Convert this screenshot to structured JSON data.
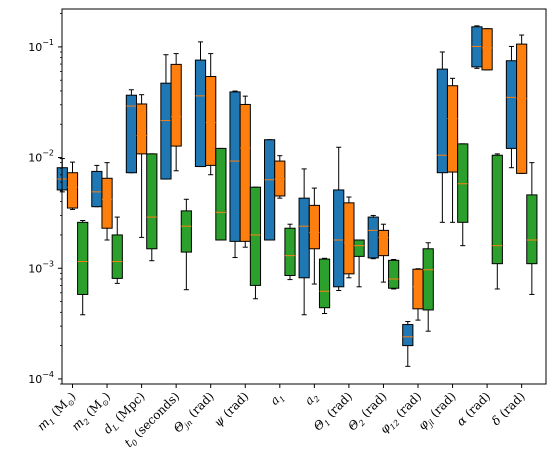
{
  "chart_data": {
    "type": "boxplot",
    "title": "",
    "xlabel": "",
    "ylabel": "",
    "yscale": "log",
    "ylim": [
      9e-05,
      0.22
    ],
    "yticks": [
      0.0001,
      0.001,
      0.01,
      0.1
    ],
    "ytick_labels": [
      {
        "base": "10",
        "exp": "−4"
      },
      {
        "base": "10",
        "exp": "−3"
      },
      {
        "base": "10",
        "exp": "−2"
      },
      {
        "base": "10",
        "exp": "−1"
      }
    ],
    "categories": [
      "m1 (M☉)",
      "m2 (M☉)",
      "dL (Mpc)",
      "t0 (seconds)",
      "Θjn (rad)",
      "ψ (rad)",
      "a1",
      "a2",
      "Θ1 (rad)",
      "Θ2 (rad)",
      "φ12 (rad)",
      "φjl (rad)",
      "α (rad)",
      "δ (rad)"
    ],
    "category_labels": [
      {
        "main": "m",
        "sub": "1",
        "rest": " (M",
        "sun": "⊙",
        "tail": ")"
      },
      {
        "main": "m",
        "sub": "2",
        "rest": " (M",
        "sun": "⊙",
        "tail": ")"
      },
      {
        "main": "d",
        "sub": "L",
        "rest": " (Mpc)"
      },
      {
        "main": "t",
        "sub": "0",
        "rest": " (seconds)"
      },
      {
        "main": "Θ",
        "sub": "jn",
        "rest": " (rad)"
      },
      {
        "main": "ψ",
        "sub": "",
        "rest": " (rad)"
      },
      {
        "main": "a",
        "sub": "1",
        "rest": ""
      },
      {
        "main": "a",
        "sub": "2",
        "rest": ""
      },
      {
        "main": "Θ",
        "sub": "1",
        "rest": " (rad)"
      },
      {
        "main": "Θ",
        "sub": "2",
        "rest": " (rad)"
      },
      {
        "main": "φ",
        "sub": "12",
        "rest": " (rad)"
      },
      {
        "main": "φ",
        "sub": "jl",
        "rest": " (rad)"
      },
      {
        "main": "α",
        "sub": "",
        "rest": " (rad)"
      },
      {
        "main": "δ",
        "sub": "",
        "rest": " (rad)"
      }
    ],
    "series": [
      {
        "color": "#1f77b4",
        "boxes": [
          {
            "wl": 0.0049,
            "q1": 0.0051,
            "med": 0.0064,
            "q3": 0.0081,
            "wh": 0.0098
          },
          {
            "wl": 0.0036,
            "q1": 0.0036,
            "med": 0.0049,
            "q3": 0.0075,
            "wh": 0.0085
          },
          {
            "wl": 0.0073,
            "q1": 0.0073,
            "med": 0.0292,
            "q3": 0.0366,
            "wh": 0.041
          },
          {
            "wl": 0.0064,
            "q1": 0.0064,
            "med": 0.0216,
            "q3": 0.047,
            "wh": 0.085
          },
          {
            "wl": 0.0083,
            "q1": 0.0083,
            "med": 0.0361,
            "q3": 0.076,
            "wh": 0.111
          },
          {
            "wl": 0.00125,
            "q1": 0.00175,
            "med": 0.0093,
            "q3": 0.0392,
            "wh": 0.0399
          },
          {
            "wl": 0.0019,
            "q1": 0.0018,
            "med": 0.0063,
            "q3": 0.0145,
            "wh": 0.0145
          },
          {
            "wl": 0.00038,
            "q1": 0.00082,
            "med": 0.0024,
            "q3": 0.0043,
            "wh": 0.0079
          },
          {
            "wl": 0.00063,
            "q1": 0.00068,
            "med": 0.0018,
            "q3": 0.0051,
            "wh": 0.0124
          },
          {
            "wl": 0.00122,
            "q1": 0.00124,
            "med": 0.0022,
            "q3": 0.0029,
            "wh": 0.003
          },
          {
            "wl": 0.00013,
            "q1": 0.0002,
            "med": 0.00024,
            "q3": 0.00031,
            "wh": 0.00033
          },
          {
            "wl": 0.0026,
            "q1": 0.0073,
            "med": 0.0105,
            "q3": 0.063,
            "wh": 0.09
          },
          {
            "wl": 0.064,
            "q1": 0.066,
            "med": 0.101,
            "q3": 0.152,
            "wh": 0.155
          },
          {
            "wl": 0.0081,
            "q1": 0.0121,
            "med": 0.035,
            "q3": 0.075,
            "wh": 0.101
          }
        ]
      },
      {
        "color": "#ff7f0e",
        "boxes": [
          {
            "wl": 0.0034,
            "q1": 0.0035,
            "med": 0.0054,
            "q3": 0.0073,
            "wh": 0.0091
          },
          {
            "wl": 0.0018,
            "q1": 0.0023,
            "med": 0.0042,
            "q3": 0.0065,
            "wh": 0.009
          },
          {
            "wl": 0.0019,
            "q1": 0.0108,
            "med": 0.0158,
            "q3": 0.0305,
            "wh": 0.037
          },
          {
            "wl": 0.0076,
            "q1": 0.0127,
            "med": 0.0234,
            "q3": 0.0695,
            "wh": 0.087
          },
          {
            "wl": 0.007,
            "q1": 0.0085,
            "med": 0.0207,
            "q3": 0.054,
            "wh": 0.087
          },
          {
            "wl": 0.00155,
            "q1": 0.00175,
            "med": 0.0122,
            "q3": 0.0302,
            "wh": 0.0359
          },
          {
            "wl": 0.0043,
            "q1": 0.0045,
            "med": 0.0064,
            "q3": 0.0093,
            "wh": 0.0104
          },
          {
            "wl": 0.00072,
            "q1": 0.0015,
            "med": 0.0021,
            "q3": 0.0037,
            "wh": 0.0053
          },
          {
            "wl": 0.00082,
            "q1": 0.00089,
            "med": 0.0017,
            "q3": 0.0039,
            "wh": 0.0044
          },
          {
            "wl": 0.00075,
            "q1": 0.0013,
            "med": 0.0019,
            "q3": 0.0022,
            "wh": 0.0025
          },
          {
            "wl": 0.00034,
            "q1": 0.00043,
            "med": 0.00068,
            "q3": 0.00098,
            "wh": 0.00099
          },
          {
            "wl": 0.0026,
            "q1": 0.0074,
            "med": 0.0225,
            "q3": 0.0446,
            "wh": 0.052
          },
          {
            "wl": 0.062,
            "q1": 0.062,
            "med": 0.098,
            "q3": 0.146,
            "wh": 0.146
          },
          {
            "wl": 0.0072,
            "q1": 0.0072,
            "med": 0.034,
            "q3": 0.106,
            "wh": 0.128
          }
        ]
      },
      {
        "color": "#2ca02c",
        "boxes": [
          {
            "wl": 0.00038,
            "q1": 0.00058,
            "med": 0.00115,
            "q3": 0.0026,
            "wh": 0.0027
          },
          {
            "wl": 0.00073,
            "q1": 0.00081,
            "med": 0.00115,
            "q3": 0.002,
            "wh": 0.0029
          },
          {
            "wl": 0.00117,
            "q1": 0.0015,
            "med": 0.0029,
            "q3": 0.0108,
            "wh": 0.0108
          },
          {
            "wl": 0.00064,
            "q1": 0.0014,
            "med": 0.0024,
            "q3": 0.0033,
            "wh": 0.0042
          },
          {
            "wl": 0.0018,
            "q1": 0.0018,
            "med": 0.0032,
            "q3": 0.0121,
            "wh": 0.0121
          },
          {
            "wl": 0.00053,
            "q1": 0.0007,
            "med": 0.002,
            "q3": 0.0054,
            "wh": 0.0054
          },
          {
            "wl": 0.00079,
            "q1": 0.00086,
            "med": 0.0013,
            "q3": 0.0023,
            "wh": 0.0025
          },
          {
            "wl": 0.00039,
            "q1": 0.00044,
            "med": 0.00062,
            "q3": 0.00121,
            "wh": 0.00123
          },
          {
            "wl": 0.00068,
            "q1": 0.00128,
            "med": 0.0016,
            "q3": 0.0018,
            "wh": 0.0018
          },
          {
            "wl": 0.00065,
            "q1": 0.00066,
            "med": 0.0008,
            "q3": 0.00118,
            "wh": 0.0012
          },
          {
            "wl": 0.00027,
            "q1": 0.00042,
            "med": 0.00097,
            "q3": 0.0015,
            "wh": 0.0017
          },
          {
            "wl": 0.0016,
            "q1": 0.0026,
            "med": 0.0058,
            "q3": 0.0133,
            "wh": 0.0133
          },
          {
            "wl": 0.00065,
            "q1": 0.0011,
            "med": 0.0016,
            "q3": 0.0105,
            "wh": 0.0108
          },
          {
            "wl": 0.00058,
            "q1": 0.0011,
            "med": 0.0018,
            "q3": 0.0046,
            "wh": 0.009
          }
        ]
      }
    ],
    "median_color": "#ff7f0e",
    "grid": false
  }
}
